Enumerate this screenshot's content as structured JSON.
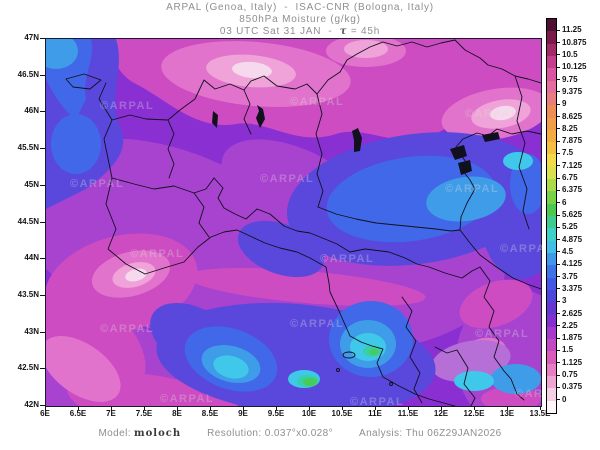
{
  "title": {
    "line1": "ARPAL (Genoa, Italy)  -  ISAC-CNR (Bologna, Italy)",
    "line2": "850hPa Moisture (g/kg)",
    "line3_prefix": "03 UTC Sat 31 JAN  -  ",
    "tau_symbol": "τ",
    "line3_suffix": " = 45h"
  },
  "map": {
    "lat_ticks": [
      "47N",
      "46.5N",
      "46N",
      "45.5N",
      "45N",
      "44.5N",
      "44N",
      "43.5N",
      "43N",
      "42.5N",
      "42N"
    ],
    "lon_ticks": [
      "6E",
      "6.5E",
      "7E",
      "7.5E",
      "8E",
      "8.5E",
      "9E",
      "9.5E",
      "10E",
      "10.5E",
      "11E",
      "11.5E",
      "12E",
      "12.5E",
      "13E",
      "13.5E"
    ],
    "watermark": "©ARPAL"
  },
  "colorbar": {
    "labels": [
      "11.25",
      "10.875",
      "10.5",
      "10.125",
      "9.75",
      "9.375",
      "9",
      "8.625",
      "8.25",
      "7.875",
      "7.5",
      "7.125",
      "6.75",
      "6.375",
      "6",
      "5.625",
      "5.25",
      "4.875",
      "4.5",
      "4.125",
      "3.75",
      "3.375",
      "3",
      "2.625",
      "2.25",
      "1.875",
      "1.5",
      "1.125",
      "0.75",
      "0.375",
      "0"
    ],
    "colors": [
      "#4d1030",
      "#7a1b4a",
      "#a32a66",
      "#c63d8c",
      "#dc55a2",
      "#e56d9e",
      "#ea7d80",
      "#ef8d56",
      "#f19c46",
      "#f2ac40",
      "#f3c044",
      "#f2da4a",
      "#d9e24e",
      "#abdb4a",
      "#77d246",
      "#4cc84f",
      "#3ecb92",
      "#3fd0c6",
      "#41bfe6",
      "#3f98e8",
      "#3f74e8",
      "#4456e6",
      "#4d46da",
      "#6436d2",
      "#8330d2",
      "#a53acc",
      "#c348c4",
      "#d95cba",
      "#e77ec2",
      "#efa5d2",
      "#f6cfe4",
      "#fdf7fa"
    ]
  },
  "footer": {
    "model_label": "Model: ",
    "model_value": "moloch",
    "resolution_label": "Resolution: ",
    "resolution_value": "0.037°x0.028°",
    "analysis_label": "Analysis: ",
    "analysis_value": "Thu 06Z29JAN2026"
  },
  "figure_colors": {
    "background": "#ffffff",
    "frame": "#1a1a2e",
    "title_text": "#8f8f8f",
    "axis_text": "#151515",
    "watermark_text": "#dcdcdc"
  }
}
